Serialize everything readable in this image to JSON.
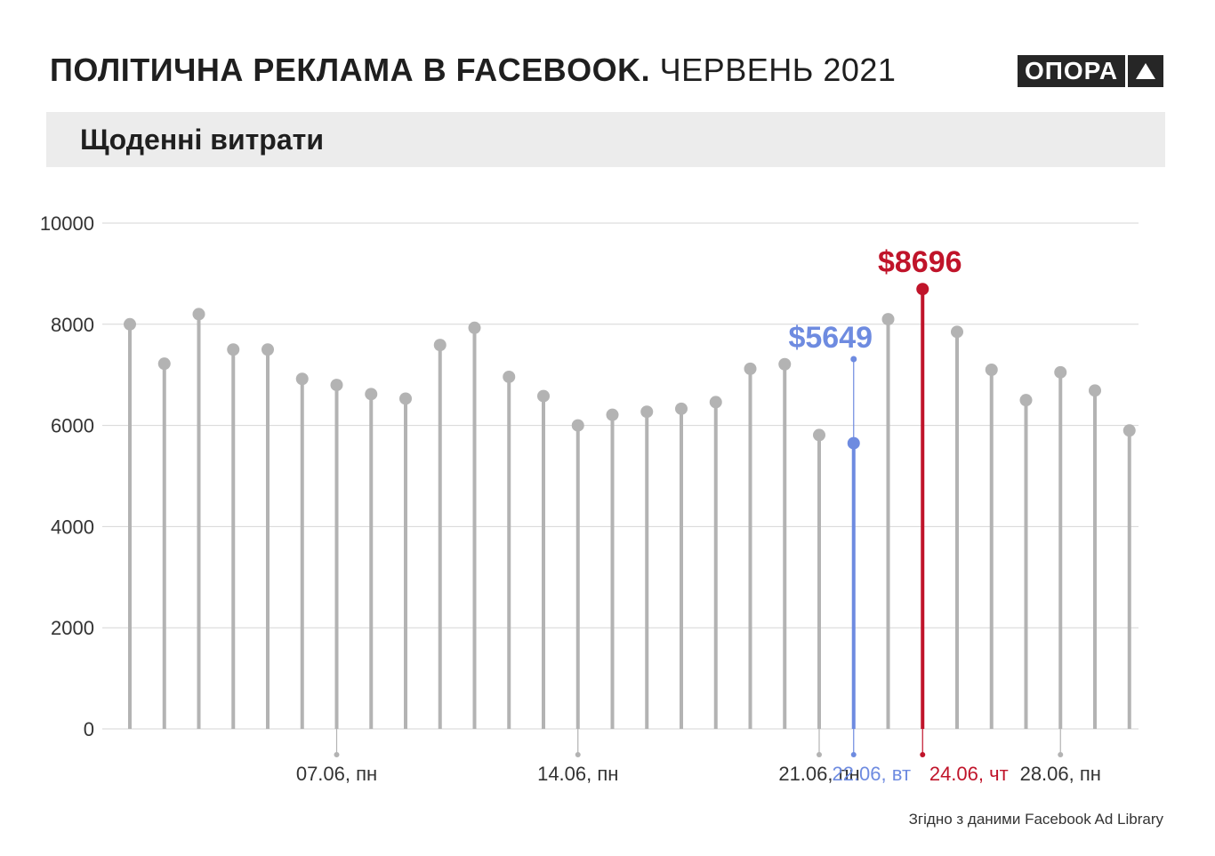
{
  "header": {
    "title_bold": "ПОЛІТИЧНА РЕКЛАМА В FACEBOOK.",
    "title_light": "ЧЕРВЕНЬ 2021",
    "logo_text": "ОПОРА"
  },
  "subtitle": "Щоденні витрати",
  "source": "Згідно з даними Facebook Ad Library",
  "colors": {
    "default": "#b3b3b3",
    "highlight_blue": "#6e8be0",
    "highlight_red": "#c0142a",
    "grid": "#d6d6d6",
    "axis_text": "#333333"
  },
  "chart_data": {
    "type": "lollipop",
    "x": [
      "01.06",
      "02.06",
      "03.06",
      "04.06",
      "05.06",
      "06.06",
      "07.06",
      "08.06",
      "09.06",
      "10.06",
      "11.06",
      "12.06",
      "13.06",
      "14.06",
      "15.06",
      "16.06",
      "17.06",
      "18.06",
      "19.06",
      "20.06",
      "21.06",
      "22.06",
      "23.06",
      "24.06",
      "25.06",
      "26.06",
      "27.06",
      "28.06",
      "29.06",
      "30.06"
    ],
    "values": [
      8000,
      7220,
      8200,
      7500,
      7500,
      6920,
      6800,
      6620,
      6530,
      7590,
      7930,
      6960,
      6580,
      6000,
      6210,
      6270,
      6330,
      6460,
      7120,
      7210,
      5810,
      5649,
      8100,
      8696,
      7850,
      7100,
      6500,
      7050,
      6690,
      5900
    ],
    "ylim": [
      0,
      10000
    ],
    "yticks": [
      0,
      2000,
      4000,
      6000,
      8000,
      10000
    ],
    "labeled_ticks": [
      {
        "index": 6,
        "label": "07.06, пн",
        "color": "default"
      },
      {
        "index": 13,
        "label": "14.06, пн",
        "color": "default"
      },
      {
        "index": 20,
        "label": "21.06, пн",
        "color": "default"
      },
      {
        "index": 21,
        "label": "22.06, вт",
        "color": "blue"
      },
      {
        "index": 23,
        "label": "24.06, чт",
        "color": "red"
      },
      {
        "index": 27,
        "label": "28.06, пн",
        "color": "default"
      }
    ],
    "annotations": [
      {
        "index": 21,
        "text": "$5649",
        "color": "blue"
      },
      {
        "index": 23,
        "text": "$8696",
        "color": "red"
      }
    ]
  }
}
